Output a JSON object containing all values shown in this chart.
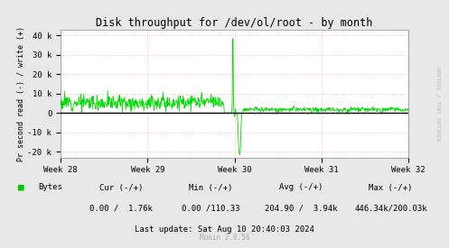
{
  "title": "Disk throughput for /dev/ol/root - by month",
  "ylabel": "Pr second read (-) / write (+)",
  "xlabel_ticks": [
    "Week 28",
    "Week 29",
    "Week 30",
    "Week 31",
    "Week 32"
  ],
  "ylim": [
    -23000,
    43000
  ],
  "yticks": [
    -20000,
    -10000,
    0,
    10000,
    20000,
    30000,
    40000
  ],
  "ytick_labels": [
    "-20 k",
    "-10 k",
    "0",
    "10 k",
    "20 k",
    "30 k",
    "40 k"
  ],
  "bg_color": "#e8e8e8",
  "plot_bg_color": "#ffffff",
  "grid_color": "#ffb0b0",
  "line_color": "#00dd00",
  "zero_line_color": "#000000",
  "legend_label": "Bytes",
  "legend_color": "#00cc00",
  "cur_label": "Cur (-/+)",
  "min_label": "Min (-/+)",
  "avg_label": "Avg (-/+)",
  "max_label": "Max (-/+)",
  "cur_val": "0.00 /  1.76k",
  "min_val": "0.00 /110.33",
  "avg_val": "204.90 /  3.94k",
  "max_val": "446.34k/200.03k",
  "last_update": "Last update: Sat Aug 10 20:40:03 2024",
  "munin_label": "Munin 2.0.56",
  "rrdtool_label": "RRDTOOL / TOBI OETIKER"
}
